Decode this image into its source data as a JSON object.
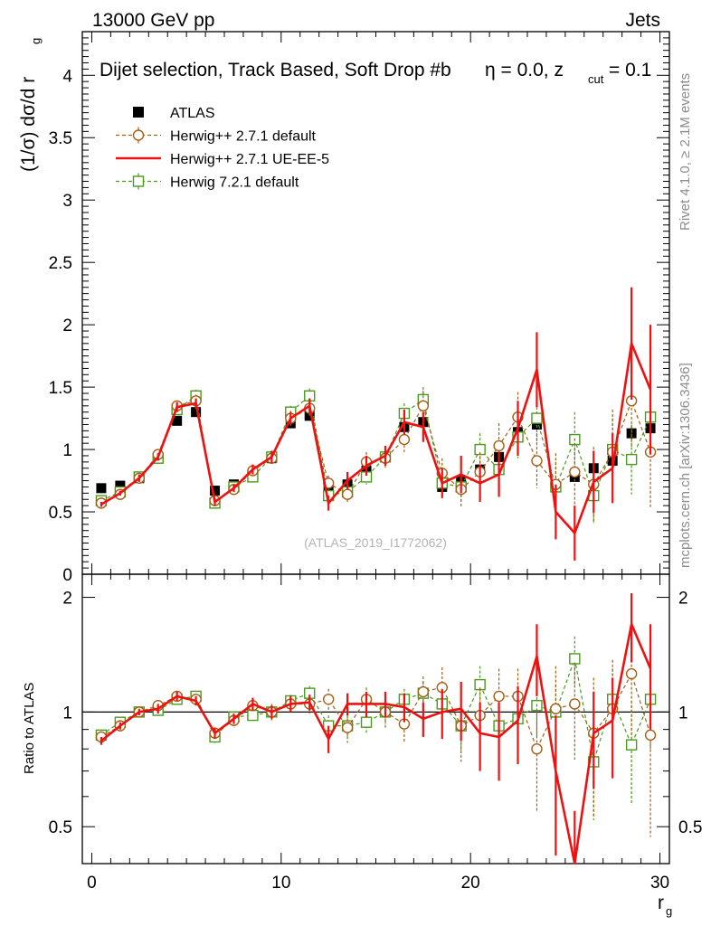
{
  "header": {
    "left": "13000 GeV pp",
    "right": "Jets"
  },
  "side_labels": {
    "rivet": "Rivet 4.1.0, ≥ 2.1M events",
    "mcplots": "mcplots.cern.ch [arXiv:1306.3436]"
  },
  "chart_data": {
    "type": "line",
    "title": "Dijet selection, Track Based, Soft Drop #b",
    "title_eta": "η = 0.0, z",
    "title_zsub": "cut",
    "title_zval": " = 0.1",
    "watermark": "(ATLAS_2019_I1772062)",
    "ylabel_main": "(1/σ) dσ/d r",
    "ylabel_main_sub": "g",
    "ylabel_ratio": "Ratio to ATLAS",
    "xlabel": "r",
    "xlabel_sub": "g",
    "xlim": [
      -0.5,
      30.5
    ],
    "ylim_main": [
      0,
      4.35
    ],
    "ylim_ratio": [
      0.4,
      2.3
    ],
    "x_ticks": [
      0,
      10,
      20,
      30
    ],
    "y_ticks_main": [
      "0",
      "0.5",
      "1",
      "1.5",
      "2",
      "2.5",
      "3",
      "3.5",
      "4"
    ],
    "y_ticks_ratio": [
      "0.5",
      "1",
      "2"
    ],
    "x": [
      0.5,
      1.5,
      2.5,
      3.5,
      4.5,
      5.5,
      6.5,
      7.5,
      8.5,
      9.5,
      10.5,
      11.5,
      12.5,
      13.5,
      14.5,
      15.5,
      16.5,
      17.5,
      18.5,
      19.5,
      20.5,
      21.5,
      22.5,
      23.5,
      24.5,
      25.5,
      26.5,
      27.5,
      28.5,
      29.5
    ],
    "legend": [
      {
        "name": "ATLAS",
        "style": "data"
      },
      {
        "name": "Herwig++ 2.7.1 default",
        "style": "circle"
      },
      {
        "name": "Herwig++ 2.7.1 UE-EE-5",
        "style": "line"
      },
      {
        "name": "Herwig 7.2.1 default",
        "style": "square"
      }
    ],
    "series": [
      {
        "name": "ATLAS",
        "color": "#000000",
        "values": [
          0.69,
          0.71,
          0.77,
          0.93,
          1.23,
          1.3,
          0.67,
          0.72,
          0.8,
          0.93,
          1.21,
          1.27,
          0.68,
          0.72,
          0.83,
          0.94,
          1.18,
          1.22,
          0.7,
          0.75,
          0.84,
          0.94,
          1.14,
          1.2,
          0.7,
          0.78,
          0.85,
          0.91,
          1.13,
          1.17
        ],
        "errors": [
          0.01,
          0.01,
          0.01,
          0.01,
          0.02,
          0.02,
          0.01,
          0.01,
          0.01,
          0.02,
          0.02,
          0.02,
          0.02,
          0.02,
          0.02,
          0.02,
          0.03,
          0.03,
          0.02,
          0.03,
          0.03,
          0.03,
          0.04,
          0.04,
          0.03,
          0.04,
          0.04,
          0.05,
          0.05,
          0.06
        ],
        "ratio": [
          1,
          1,
          1,
          1,
          1,
          1,
          1,
          1,
          1,
          1,
          1,
          1,
          1,
          1,
          1,
          1,
          1,
          1,
          1,
          1,
          1,
          1,
          1,
          1,
          1,
          1,
          1,
          1,
          1,
          1
        ]
      },
      {
        "name": "Herwig++ 2.7.1 default",
        "color": "#a55f15",
        "values": [
          0.57,
          0.64,
          0.77,
          0.96,
          1.35,
          1.39,
          0.59,
          0.68,
          0.83,
          0.93,
          1.25,
          1.33,
          0.73,
          0.64,
          0.9,
          0.93,
          1.08,
          1.35,
          0.81,
          0.68,
          0.82,
          1.03,
          1.26,
          0.91,
          0.72,
          0.82,
          0.72,
          0.98,
          1.39,
          0.98
        ],
        "errors": [
          0.02,
          0.02,
          0.03,
          0.04,
          0.04,
          0.05,
          0.03,
          0.04,
          0.04,
          0.05,
          0.06,
          0.07,
          0.06,
          0.07,
          0.08,
          0.09,
          0.1,
          0.12,
          0.12,
          0.14,
          0.16,
          0.18,
          0.2,
          0.22,
          0.25,
          0.27,
          0.3,
          0.34,
          0.38,
          0.45
        ],
        "ratio": [
          0.86,
          0.92,
          1.0,
          1.04,
          1.1,
          1.08,
          0.88,
          0.95,
          1.04,
          1.0,
          1.05,
          1.05,
          1.08,
          0.91,
          1.08,
          1.0,
          0.93,
          1.13,
          1.16,
          0.92,
          0.98,
          1.1,
          1.1,
          0.8,
          1.02,
          1.05,
          0.88,
          1.02,
          1.26,
          0.87
        ],
        "ratio_errors": [
          0.02,
          0.02,
          0.02,
          0.03,
          0.03,
          0.03,
          0.03,
          0.04,
          0.04,
          0.05,
          0.05,
          0.06,
          0.07,
          0.08,
          0.08,
          0.09,
          0.1,
          0.11,
          0.15,
          0.18,
          0.18,
          0.2,
          0.2,
          0.25,
          0.3,
          0.3,
          0.35,
          0.35,
          0.4,
          0.4
        ]
      },
      {
        "name": "Herwig++ 2.7.1 UE-EE-5",
        "color": "#ee1111",
        "values": [
          0.56,
          0.65,
          0.77,
          0.94,
          1.34,
          1.37,
          0.58,
          0.69,
          0.84,
          0.94,
          1.25,
          1.35,
          0.57,
          0.75,
          0.87,
          0.95,
          1.22,
          1.18,
          0.73,
          0.8,
          0.73,
          0.8,
          1.17,
          1.64,
          0.5,
          0.33,
          0.74,
          0.85,
          1.85,
          1.48
        ],
        "errors": [
          0.02,
          0.02,
          0.03,
          0.03,
          0.04,
          0.04,
          0.03,
          0.03,
          0.04,
          0.05,
          0.05,
          0.06,
          0.06,
          0.07,
          0.08,
          0.08,
          0.1,
          0.12,
          0.12,
          0.15,
          0.15,
          0.18,
          0.22,
          0.3,
          0.22,
          0.22,
          0.25,
          0.28,
          0.45,
          0.52
        ],
        "ratio": [
          0.84,
          0.92,
          1.0,
          1.02,
          1.1,
          1.07,
          0.88,
          0.96,
          1.05,
          1.0,
          1.05,
          1.06,
          0.85,
          1.05,
          1.05,
          1.05,
          1.03,
          0.96,
          1.0,
          1.02,
          0.88,
          0.86,
          0.95,
          1.4,
          0.7,
          0.35,
          0.88,
          0.95,
          1.7,
          1.3
        ],
        "ratio_errors": [
          0.02,
          0.02,
          0.02,
          0.03,
          0.03,
          0.03,
          0.03,
          0.03,
          0.04,
          0.04,
          0.05,
          0.05,
          0.07,
          0.07,
          0.08,
          0.08,
          0.09,
          0.1,
          0.15,
          0.18,
          0.18,
          0.2,
          0.22,
          0.3,
          0.28,
          0.2,
          0.25,
          0.28,
          0.35,
          0.4
        ]
      },
      {
        "name": "Herwig 7.2.1 default",
        "color": "#4a9a1e",
        "values": [
          0.59,
          0.66,
          0.78,
          0.93,
          1.32,
          1.43,
          0.57,
          0.7,
          0.78,
          0.94,
          1.3,
          1.43,
          0.63,
          0.66,
          0.78,
          0.94,
          1.29,
          1.4,
          0.73,
          0.7,
          1.0,
          0.84,
          1.1,
          1.25,
          0.7,
          1.08,
          0.63,
          1.0,
          0.92,
          1.26
        ],
        "errors": [
          0.02,
          0.02,
          0.02,
          0.03,
          0.04,
          0.05,
          0.03,
          0.03,
          0.04,
          0.04,
          0.05,
          0.06,
          0.05,
          0.06,
          0.06,
          0.07,
          0.08,
          0.1,
          0.1,
          0.12,
          0.13,
          0.15,
          0.17,
          0.2,
          0.2,
          0.22,
          0.22,
          0.25,
          0.28,
          0.32
        ],
        "ratio": [
          0.87,
          0.94,
          1.0,
          1.01,
          1.08,
          1.1,
          0.86,
          0.97,
          0.98,
          1.0,
          1.07,
          1.12,
          0.92,
          0.92,
          0.94,
          1.0,
          1.08,
          1.12,
          1.05,
          0.92,
          1.18,
          0.92,
          0.96,
          1.04,
          1.0,
          1.38,
          0.74,
          1.08,
          0.82,
          1.08
        ],
        "ratio_errors": [
          0.02,
          0.02,
          0.02,
          0.02,
          0.03,
          0.03,
          0.03,
          0.03,
          0.03,
          0.04,
          0.04,
          0.05,
          0.06,
          0.06,
          0.06,
          0.07,
          0.07,
          0.08,
          0.12,
          0.14,
          0.14,
          0.15,
          0.15,
          0.18,
          0.18,
          0.2,
          0.22,
          0.22,
          0.25,
          0.28
        ]
      }
    ]
  }
}
